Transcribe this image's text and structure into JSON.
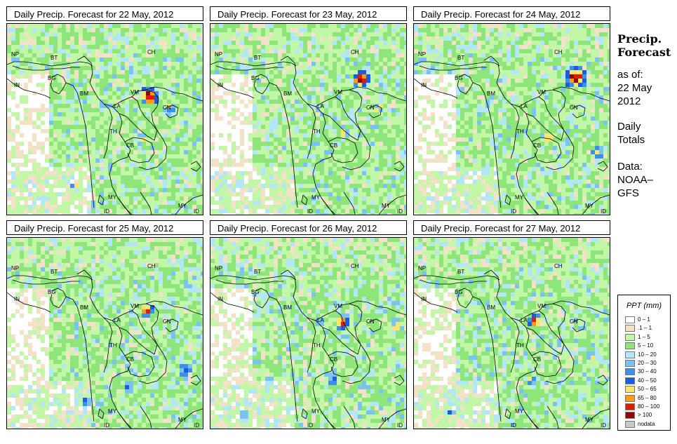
{
  "panels": [
    {
      "title": "Daily Precip. Forecast for  22 May, 2012"
    },
    {
      "title": "Daily Precip. Forecast for  23 May, 2012"
    },
    {
      "title": "Daily Precip. Forecast for  24 May, 2012"
    },
    {
      "title": "Daily Precip. Forecast for  25 May, 2012"
    },
    {
      "title": "Daily Precip. Forecast for  26 May, 2012"
    },
    {
      "title": "Daily Precip. Forecast for  27 May, 2012"
    }
  ],
  "country_labels": {
    "np": "NP",
    "bt": "BT",
    "bg": "BG",
    "in": "IN",
    "ch": "CH",
    "bm": "BM",
    "vm": "VM",
    "la": "LA",
    "th": "TH",
    "cb": "CB",
    "my1": "MY",
    "my2": "MY",
    "id1": "ID",
    "id2": "ID",
    "cn": "CN"
  },
  "side": {
    "title1": "Precip.",
    "title2": "Forecast",
    "asof": "as of:",
    "date1": "22 May",
    "date2": "2012",
    "daily": "Daily",
    "totals": "Totals",
    "data": "Data:",
    "src1": "NOAA–",
    "src2": "GFS"
  },
  "legend": {
    "title": "PPT (mm)",
    "items": [
      {
        "label": "0 – 1",
        "color": "#ffffff"
      },
      {
        "label": ".1 – 1",
        "color": "#f4e2c8"
      },
      {
        "label": "1 – 5",
        "color": "#c3f7a8"
      },
      {
        "label": "5 – 10",
        "color": "#8ee67a"
      },
      {
        "label": "10 – 20",
        "color": "#b4e6fa"
      },
      {
        "label": "20 – 30",
        "color": "#7ac2f2"
      },
      {
        "label": "30 – 40",
        "color": "#3c90e8"
      },
      {
        "label": "40 – 50",
        "color": "#1e5cdc"
      },
      {
        "label": "50 – 65",
        "color": "#fae66e"
      },
      {
        "label": "65 – 80",
        "color": "#fa9c1e"
      },
      {
        "label": "80 – 100",
        "color": "#dc1e00"
      },
      {
        "label": "> 100",
        "color": "#8c0a00"
      },
      {
        "label": "nodata",
        "color": "#c8c8c8"
      }
    ]
  }
}
